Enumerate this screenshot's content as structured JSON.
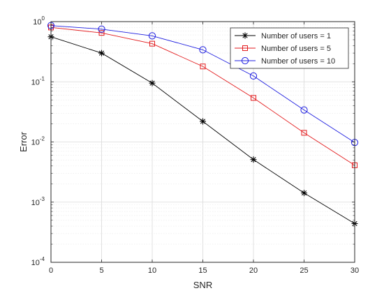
{
  "chart_data": {
    "type": "line",
    "xlabel": "SNR",
    "ylabel": "Error",
    "x": [
      0,
      5,
      10,
      15,
      20,
      25,
      30
    ],
    "xlim": [
      0,
      30
    ],
    "ylim": [
      0.0001,
      1
    ],
    "yscale": "log",
    "grid": true,
    "minor_grid": true,
    "legend_position": "top-right",
    "x_ticks": [
      "0",
      "5",
      "10",
      "15",
      "20",
      "25",
      "30"
    ],
    "y_ticks": [
      {
        "value": 0.0001,
        "base": "10",
        "exp": "-4"
      },
      {
        "value": 0.001,
        "base": "10",
        "exp": "-3"
      },
      {
        "value": 0.01,
        "base": "10",
        "exp": "-2"
      },
      {
        "value": 0.1,
        "base": "10",
        "exp": "-1"
      },
      {
        "value": 1,
        "base": "10",
        "exp": "0"
      }
    ],
    "series": [
      {
        "name": "Number of users = 1",
        "color": "#000000",
        "marker": "asterisk",
        "values": [
          0.56,
          0.3,
          0.095,
          0.022,
          0.0051,
          0.00142,
          0.00044
        ]
      },
      {
        "name": "Number of users = 5",
        "color": "#e31a1c",
        "marker": "square",
        "values": [
          0.8,
          0.65,
          0.43,
          0.18,
          0.054,
          0.0142,
          0.0041
        ]
      },
      {
        "name": "Number of users = 10",
        "color": "#1f1fe0",
        "marker": "circle",
        "values": [
          0.86,
          0.75,
          0.58,
          0.34,
          0.125,
          0.034,
          0.0098
        ]
      }
    ]
  }
}
